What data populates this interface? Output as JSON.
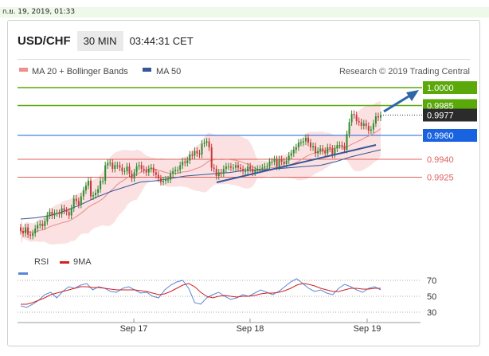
{
  "date_stamp": "ก.ย. 19, 2019, 01:33",
  "header": {
    "pair": "USD/CHF",
    "timeframe": "30 MIN",
    "time": "03:44:31 CET"
  },
  "legend": {
    "ma20": "MA 20 + Bollinger Bands",
    "ma50": "MA 50"
  },
  "copyright": "Research © 2019 Trading Central",
  "colors": {
    "up": "#2e8b2e",
    "down": "#c43a3a",
    "band": "#f7c9c9",
    "ma50": "#34579a",
    "green": "#5aa80a",
    "blue": "#1a63e0",
    "red": "#e06060",
    "dark": "#2b2b2b",
    "arrow": "#2e66a8"
  },
  "chart_data": [
    {
      "type": "candlestick",
      "series_name": "USD/CHF 30 MIN",
      "x_labels": [
        "Sep 17",
        "Sep 18",
        "Sep 19"
      ],
      "ylim": [
        0.988,
        1.001
      ],
      "levels": [
        {
          "value": 1.0,
          "label": "1.0000",
          "style": "resistance"
        },
        {
          "value": 0.9985,
          "label": "0.9985",
          "style": "resistance"
        },
        {
          "value": 0.9977,
          "label": "0.9977",
          "style": "last"
        },
        {
          "value": 0.996,
          "label": "0.9960",
          "style": "pivot"
        },
        {
          "value": 0.994,
          "label": "0.9940",
          "style": "support"
        },
        {
          "value": 0.9925,
          "label": "0.9925",
          "style": "support"
        }
      ],
      "close": [
        0.988,
        0.9878,
        0.9883,
        0.9877,
        0.9876,
        0.9878,
        0.9882,
        0.9885,
        0.9886,
        0.9884,
        0.9888,
        0.9893,
        0.9896,
        0.9893,
        0.9895,
        0.9895,
        0.9894,
        0.9899,
        0.9897,
        0.9896,
        0.9893,
        0.9899,
        0.9907,
        0.9905,
        0.9902,
        0.9909,
        0.9914,
        0.9918,
        0.9922,
        0.9909,
        0.991,
        0.9912,
        0.9915,
        0.9922,
        0.9922,
        0.9935,
        0.9937,
        0.9937,
        0.9932,
        0.9935,
        0.9935,
        0.9933,
        0.993,
        0.993,
        0.9934,
        0.9928,
        0.9924,
        0.9929,
        0.9934,
        0.9935,
        0.9932,
        0.9931,
        0.9929,
        0.9932,
        0.9933,
        0.9929,
        0.9927,
        0.9924,
        0.9921,
        0.9922,
        0.9923,
        0.9923,
        0.9928,
        0.993,
        0.9931,
        0.9931,
        0.9935,
        0.9938,
        0.9937,
        0.9939,
        0.9944,
        0.9943,
        0.9947,
        0.9945,
        0.9944,
        0.9953,
        0.9954,
        0.9955,
        0.995,
        0.9933,
        0.9932,
        0.9926,
        0.9929,
        0.9928,
        0.9932,
        0.9934,
        0.9934,
        0.9933,
        0.9933,
        0.9935,
        0.9933,
        0.9932,
        0.993,
        0.993,
        0.9934,
        0.9932,
        0.9929,
        0.9931,
        0.9932,
        0.9932,
        0.9933,
        0.9934,
        0.9934,
        0.9938,
        0.9938,
        0.994,
        0.9934,
        0.994,
        0.9938,
        0.9936,
        0.9939,
        0.9943,
        0.9945,
        0.9948,
        0.995,
        0.9954,
        0.9954,
        0.9955,
        0.9958,
        0.9954,
        0.995,
        0.9951,
        0.9945,
        0.9947,
        0.9949,
        0.9947,
        0.9945,
        0.995,
        0.9949,
        0.9944,
        0.9949,
        0.9952,
        0.9952,
        0.9951,
        0.9948,
        0.9961,
        0.9971,
        0.9978,
        0.9977,
        0.9972,
        0.9971,
        0.9968,
        0.997,
        0.9968,
        0.9964,
        0.9965,
        0.997,
        0.9976,
        0.9975,
        0.9977
      ],
      "ma50_points": [
        0.989,
        0.9891,
        0.9893,
        0.9897,
        0.9902,
        0.9908,
        0.9913,
        0.9917,
        0.9921,
        0.9922,
        0.9924,
        0.9926,
        0.9927,
        0.9928,
        0.9929,
        0.9931,
        0.9931,
        0.9932,
        0.9933,
        0.9934,
        0.9935,
        0.9938,
        0.9942,
        0.9945,
        0.9948
      ],
      "rsi": {
        "levels": [
          70,
          50,
          30
        ],
        "rsi_values": [
          38,
          36,
          40,
          45,
          52,
          55,
          48,
          56,
          62,
          60,
          64,
          66,
          58,
          62,
          60,
          56,
          55,
          60,
          62,
          58,
          54,
          55,
          50,
          48,
          58,
          64,
          68,
          70,
          60,
          42,
          40,
          48,
          52,
          55,
          50,
          46,
          48,
          52,
          50,
          54,
          58,
          55,
          52,
          56,
          62,
          68,
          72,
          66,
          60,
          56,
          58,
          54,
          52,
          60,
          65,
          62,
          58,
          55,
          60,
          62,
          58
        ],
        "ma_values": [
          40,
          40,
          42,
          45,
          48,
          52,
          54,
          56,
          58,
          60,
          62,
          62,
          61,
          61,
          60,
          59,
          58,
          58,
          58,
          58,
          57,
          56,
          54,
          52,
          53,
          56,
          60,
          64,
          66,
          62,
          55,
          50,
          48,
          50,
          51,
          50,
          49,
          50,
          50,
          51,
          53,
          54,
          54,
          55,
          57,
          60,
          64,
          66,
          65,
          63,
          60,
          58,
          56,
          56,
          58,
          60,
          60,
          59,
          59,
          60,
          60
        ]
      }
    }
  ]
}
